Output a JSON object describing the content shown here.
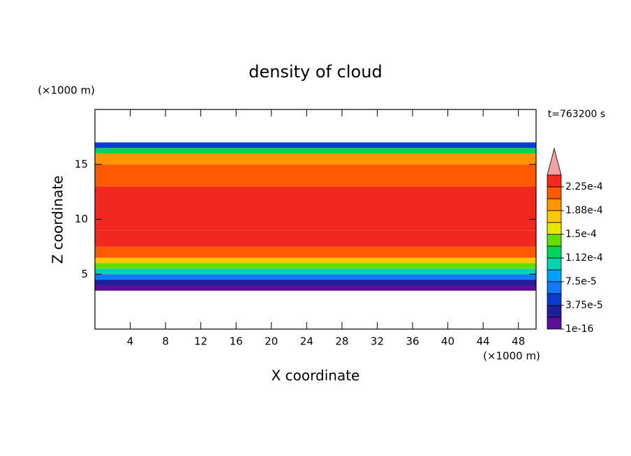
{
  "chart_data": {
    "type": "contour",
    "title": "density of cloud",
    "time_label": "t=763200 s",
    "xlabel": "X coordinate",
    "ylabel": "Z coordinate",
    "x_unit": "(×1000 m)",
    "y_unit": "(×1000 m)",
    "xlim": [
      0,
      50
    ],
    "ylim": [
      0,
      20
    ],
    "xticks": [
      4,
      8,
      12,
      16,
      20,
      24,
      28,
      32,
      36,
      40,
      44,
      48
    ],
    "yticks": [
      5,
      10,
      15
    ],
    "z_edges": [
      3.5,
      4,
      4.5,
      5,
      5.5,
      6,
      6.5,
      7.5,
      9,
      13,
      15,
      16,
      16.5,
      17
    ],
    "values": [
      1e-05,
      3e-05,
      6e-05,
      0.0001,
      0.00014,
      0.00018,
      0.00021,
      0.00023,
      0.00024,
      0.00022,
      0.00019,
      0.00012,
      5e-05
    ],
    "levels": [
      1e-16,
      1.875e-05,
      3.75e-05,
      5.625e-05,
      7.5e-05,
      9.375e-05,
      0.0001125,
      0.00013125,
      0.00015,
      0.00016875,
      0.0001875,
      0.00020625,
      0.000225,
      0.00024375
    ],
    "colors": [
      "#5b0f96",
      "#1e1e9b",
      "#0a3cd2",
      "#1478ff",
      "#00a0ff",
      "#00d2b4",
      "#00d25a",
      "#64dc00",
      "#e6e600",
      "#ffc800",
      "#ff9600",
      "#ff5a00",
      "#f0281e"
    ],
    "extend_color": "#f4a0a0",
    "colorbar_ticks": [
      {
        "value": 1e-16,
        "label": "1e-16"
      },
      {
        "value": 3.75e-05,
        "label": "3.75e-5"
      },
      {
        "value": 7.5e-05,
        "label": "7.5e-5"
      },
      {
        "value": 0.0001125,
        "label": "1.12e-4"
      },
      {
        "value": 0.00015,
        "label": "1.5e-4"
      },
      {
        "value": 0.0001875,
        "label": "1.88e-4"
      },
      {
        "value": 0.000225,
        "label": "2.25e-4"
      }
    ]
  }
}
